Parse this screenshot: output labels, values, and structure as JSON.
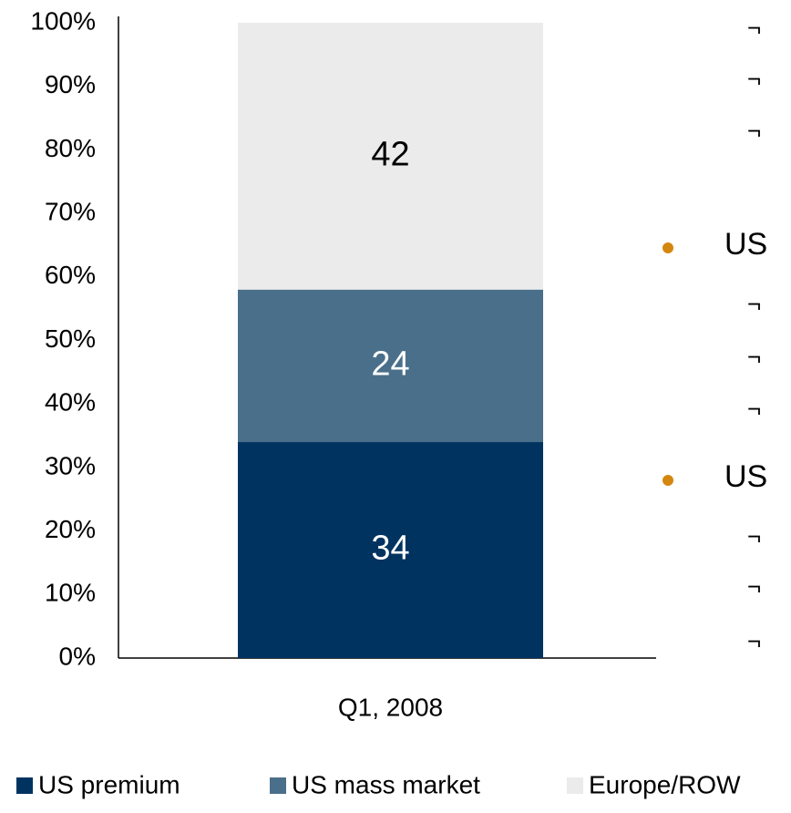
{
  "chart_data": {
    "type": "stacked_bar",
    "categories": [
      "Q1, 2008"
    ],
    "series": [
      {
        "name": "US premium",
        "color": "#003360",
        "label_color": "#ffffff",
        "values": [
          34
        ]
      },
      {
        "name": "US mass market",
        "color": "#4a6f8a",
        "label_color": "#ffffff",
        "values": [
          24
        ]
      },
      {
        "name": "Europe/ROW",
        "color": "#ebebeb",
        "label_color": "#000000",
        "values": [
          42
        ]
      }
    ],
    "ylim": [
      0,
      100
    ],
    "yticks": [
      {
        "value": 0,
        "label": "0%"
      },
      {
        "value": 10,
        "label": "10%"
      },
      {
        "value": 20,
        "label": "20%"
      },
      {
        "value": 30,
        "label": "30%"
      },
      {
        "value": 40,
        "label": "40%"
      },
      {
        "value": 50,
        "label": "50%"
      },
      {
        "value": 60,
        "label": "60%"
      },
      {
        "value": 70,
        "label": "70%"
      },
      {
        "value": 80,
        "label": "80%"
      },
      {
        "value": 90,
        "label": "90%"
      },
      {
        "value": 100,
        "label": "100%"
      }
    ],
    "grid": false,
    "legend": "bottom"
  },
  "side_text": [
    "¬",
    "¬",
    "¬",
    "US",
    "¬",
    "¬",
    "¬",
    "US",
    "¬",
    "¬",
    "¬"
  ]
}
